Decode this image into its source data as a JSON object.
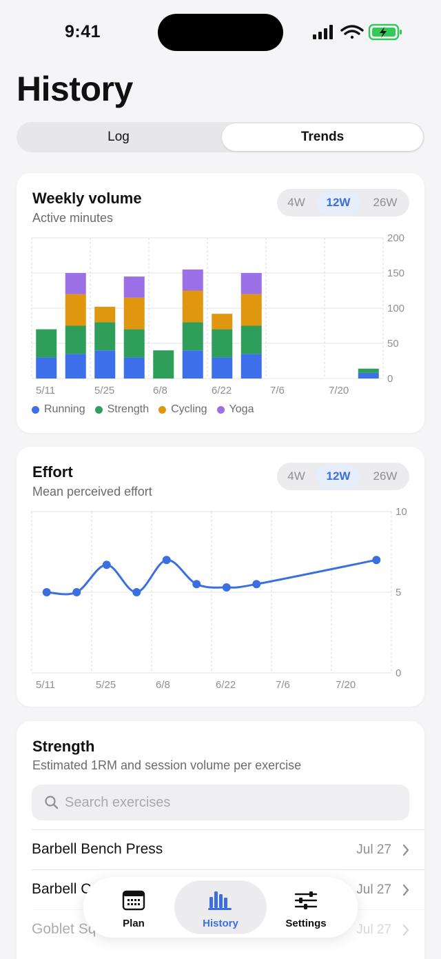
{
  "status": {
    "time": "9:41"
  },
  "page": {
    "title": "History"
  },
  "segments": {
    "log": "Log",
    "trends": "Trends",
    "selected": "Trends"
  },
  "ranges": {
    "options": [
      "4W",
      "12W",
      "26W"
    ],
    "selected": "12W"
  },
  "volume_card": {
    "title": "Weekly volume",
    "subtitle": "Active minutes"
  },
  "effort_card": {
    "title": "Effort",
    "subtitle": "Mean perceived effort"
  },
  "strength_card": {
    "title": "Strength",
    "subtitle": "Estimated 1RM and session volume per exercise",
    "search_placeholder": "Search exercises",
    "exercises": [
      {
        "name": "Barbell Bench Press",
        "date": "Jul 27"
      },
      {
        "name": "Barbell C",
        "date": "Jul 27"
      },
      {
        "name": "Goblet Sq",
        "date": "Jul 27"
      }
    ]
  },
  "tabs": [
    {
      "label": "Plan",
      "icon": "calendar-icon"
    },
    {
      "label": "History",
      "icon": "bar-chart-icon"
    },
    {
      "label": "Settings",
      "icon": "sliders-icon"
    }
  ],
  "colors": {
    "running": "#3d6fea",
    "strength": "#2f9e5a",
    "cycling": "#e0960f",
    "yoga": "#9b6fe6",
    "accent": "#3b6fe0"
  },
  "chart_data": [
    {
      "type": "bar",
      "stacked": true,
      "categories": [
        "5/11",
        "5/18",
        "5/25",
        "6/1",
        "6/8",
        "6/15",
        "6/22",
        "6/29",
        "7/6",
        "7/13",
        "7/20",
        "7/27"
      ],
      "x_tick_labels": [
        "5/11",
        "5/25",
        "6/8",
        "6/22",
        "7/6",
        "7/20"
      ],
      "series": [
        {
          "name": "Running",
          "values": [
            30,
            35,
            40,
            30,
            0,
            40,
            30,
            35,
            0,
            0,
            0,
            8
          ]
        },
        {
          "name": "Strength",
          "values": [
            40,
            40,
            40,
            40,
            40,
            40,
            40,
            40,
            0,
            0,
            0,
            6
          ]
        },
        {
          "name": "Cycling",
          "values": [
            0,
            45,
            22,
            45,
            0,
            45,
            22,
            45,
            0,
            0,
            0,
            0
          ]
        },
        {
          "name": "Yoga",
          "values": [
            0,
            30,
            0,
            30,
            0,
            30,
            0,
            30,
            0,
            0,
            0,
            0
          ]
        }
      ],
      "ylim": [
        0,
        200
      ],
      "y_ticks": [
        0,
        50,
        100,
        150,
        200
      ],
      "grid": true,
      "legend": "bottom"
    },
    {
      "type": "line",
      "x": [
        "5/11",
        "5/18",
        "5/25",
        "6/1",
        "6/8",
        "6/15",
        "6/22",
        "6/29",
        "7/27"
      ],
      "x_tick_labels": [
        "5/11",
        "5/25",
        "6/8",
        "6/22",
        "7/6",
        "7/20"
      ],
      "all_weeks": [
        "5/11",
        "5/18",
        "5/25",
        "6/1",
        "6/8",
        "6/15",
        "6/22",
        "6/29",
        "7/6",
        "7/13",
        "7/20",
        "7/27"
      ],
      "series": [
        {
          "values": [
            5.0,
            5.0,
            6.7,
            5.0,
            7.0,
            5.5,
            5.3,
            5.5,
            7.0
          ]
        }
      ],
      "ylim": [
        0,
        10
      ],
      "y_ticks": [
        0,
        5,
        10
      ],
      "grid": true
    }
  ]
}
